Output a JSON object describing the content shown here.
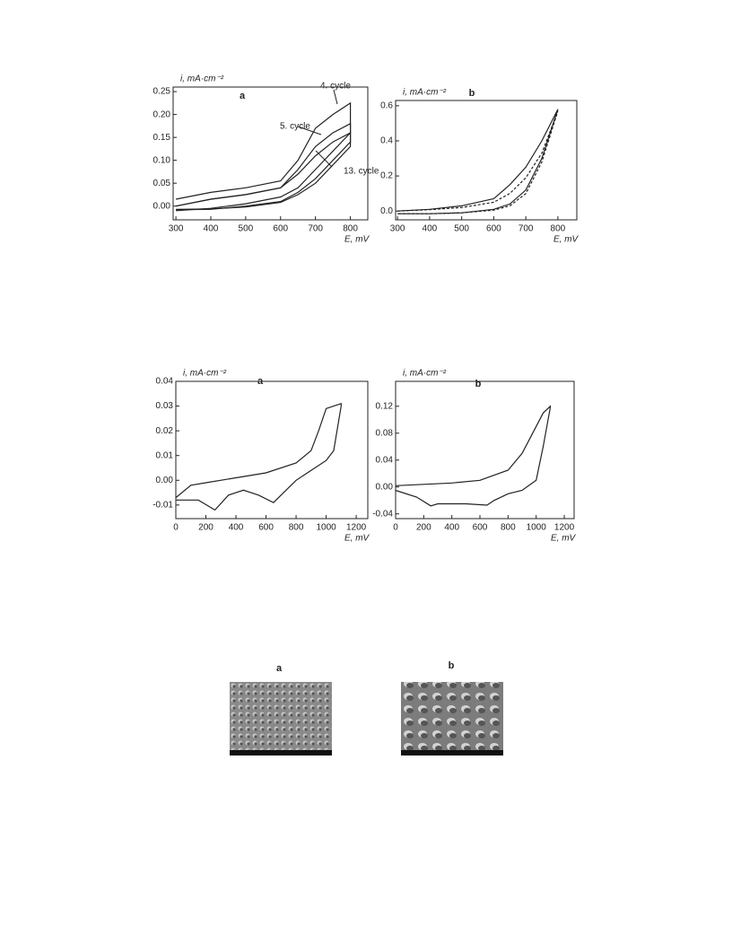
{
  "chart_data": [
    {
      "type": "line",
      "title": "a",
      "ylabel": "i, mA·cm⁻²",
      "xlabel": "E, mV",
      "xlim": [
        292,
        850
      ],
      "ylim": [
        -0.03,
        0.26
      ],
      "xticks": [
        300,
        400,
        500,
        600,
        700,
        800
      ],
      "yticks": [
        {
          "value": 0,
          "label": "0.00"
        },
        0.05,
        {
          "value": 0.1,
          "label": "0.10"
        },
        0.15,
        {
          "value": 0.2,
          "label": "0.20"
        },
        0.25
      ],
      "x": [
        300,
        400,
        500,
        600,
        650,
        700,
        750,
        800,
        800,
        750,
        700,
        650,
        600,
        500,
        400,
        300
      ],
      "series": [
        {
          "name": "4. cycle",
          "color": "#222222",
          "values": [
            0.015,
            0.03,
            0.04,
            0.055,
            0.1,
            0.17,
            0.2,
            0.225,
            0.16,
            0.12,
            0.08,
            0.04,
            0.02,
            0.005,
            -0.005,
            -0.01
          ]
        },
        {
          "name": "5. cycle",
          "color": "#222222",
          "values": [
            0,
            0.015,
            0.025,
            0.04,
            0.08,
            0.13,
            0.16,
            0.18,
            0.14,
            0.1,
            0.06,
            0.03,
            0.01,
            0,
            -0.007,
            -0.008
          ]
        },
        {
          "name": "13. cycle",
          "color": "#222222",
          "values": [
            0,
            0.015,
            0.025,
            0.04,
            0.07,
            0.11,
            0.14,
            0.16,
            0.13,
            0.09,
            0.05,
            0.025,
            0.008,
            -0.002,
            -0.006,
            -0.007
          ]
        }
      ]
    },
    {
      "type": "line",
      "title": "b",
      "ylabel": "i, mA·cm⁻²",
      "xlabel": "E, mV",
      "xlim": [
        294,
        859
      ],
      "ylim": [
        -0.05,
        0.63
      ],
      "xticks": [
        300,
        400,
        500,
        600,
        700,
        800
      ],
      "yticks": [
        {
          "value": 0,
          "label": "0.0"
        },
        0.2,
        0.4,
        0.6
      ],
      "x": [
        300,
        400,
        500,
        600,
        650,
        700,
        750,
        800,
        750,
        700,
        650,
        600,
        500,
        400,
        300
      ],
      "series": [
        {
          "color": "#222222",
          "dashed": false,
          "values": [
            0,
            0.01,
            0.03,
            0.07,
            0.15,
            0.25,
            0.4,
            0.58,
            0.3,
            0.12,
            0.04,
            0.01,
            -0.01,
            -0.015,
            -0.015
          ]
        },
        {
          "color": "#222222",
          "dashed": true,
          "values": [
            0,
            0.008,
            0.02,
            0.05,
            0.1,
            0.19,
            0.33,
            0.57,
            0.28,
            0.1,
            0.03,
            0.005,
            -0.01,
            -0.015,
            -0.015
          ]
        }
      ]
    },
    {
      "type": "line",
      "title": "a",
      "ylabel": "i, mA·cm⁻²",
      "xlabel": "E, mV",
      "xlim": [
        0,
        1277
      ],
      "ylim": [
        -0.0155,
        0.04
      ],
      "xticks": [
        0,
        200,
        400,
        600,
        800,
        1000,
        1200
      ],
      "yticks": [
        -0.01,
        {
          "value": 0,
          "label": "0.00"
        },
        0.01,
        0.02,
        0.03,
        0.04
      ],
      "x": [
        0,
        100,
        200,
        400,
        600,
        800,
        900,
        950,
        1000,
        1100,
        1100,
        1050,
        1000,
        900,
        800,
        700,
        650,
        550,
        450,
        350,
        260,
        150,
        0
      ],
      "series": [
        {
          "color": "#222222",
          "values": [
            -0.007,
            -0.002,
            -0.001,
            0.001,
            0.003,
            0.007,
            0.012,
            0.02,
            0.029,
            0.031,
            0.03,
            0.012,
            0.008,
            0.004,
            0,
            -0.006,
            -0.009,
            -0.006,
            -0.004,
            -0.006,
            -0.012,
            -0.008,
            -0.008
          ]
        }
      ]
    },
    {
      "type": "line",
      "title": "b",
      "ylabel": "i, mA·cm⁻²",
      "xlabel": "E, mV",
      "xlim": [
        0,
        1270
      ],
      "ylim": [
        -0.047,
        0.157
      ],
      "xticks": [
        0,
        200,
        400,
        600,
        800,
        1000,
        1200
      ],
      "yticks": [
        -0.04,
        {
          "value": 0,
          "label": "0.00"
        },
        0.04,
        0.08,
        0.12
      ],
      "x": [
        0,
        200,
        400,
        600,
        800,
        900,
        1000,
        1050,
        1100,
        1100,
        1050,
        1000,
        900,
        800,
        700,
        650,
        500,
        300,
        250,
        150,
        0
      ],
      "series": [
        {
          "color": "#222222",
          "values": [
            0.002,
            0.004,
            0.006,
            0.01,
            0.025,
            0.05,
            0.09,
            0.11,
            0.12,
            0.118,
            0.06,
            0.01,
            -0.005,
            -0.01,
            -0.02,
            -0.027,
            -0.025,
            -0.025,
            -0.028,
            -0.015,
            -0.005
          ]
        }
      ]
    }
  ],
  "images": [
    {
      "label": "a"
    },
    {
      "label": "b"
    }
  ]
}
